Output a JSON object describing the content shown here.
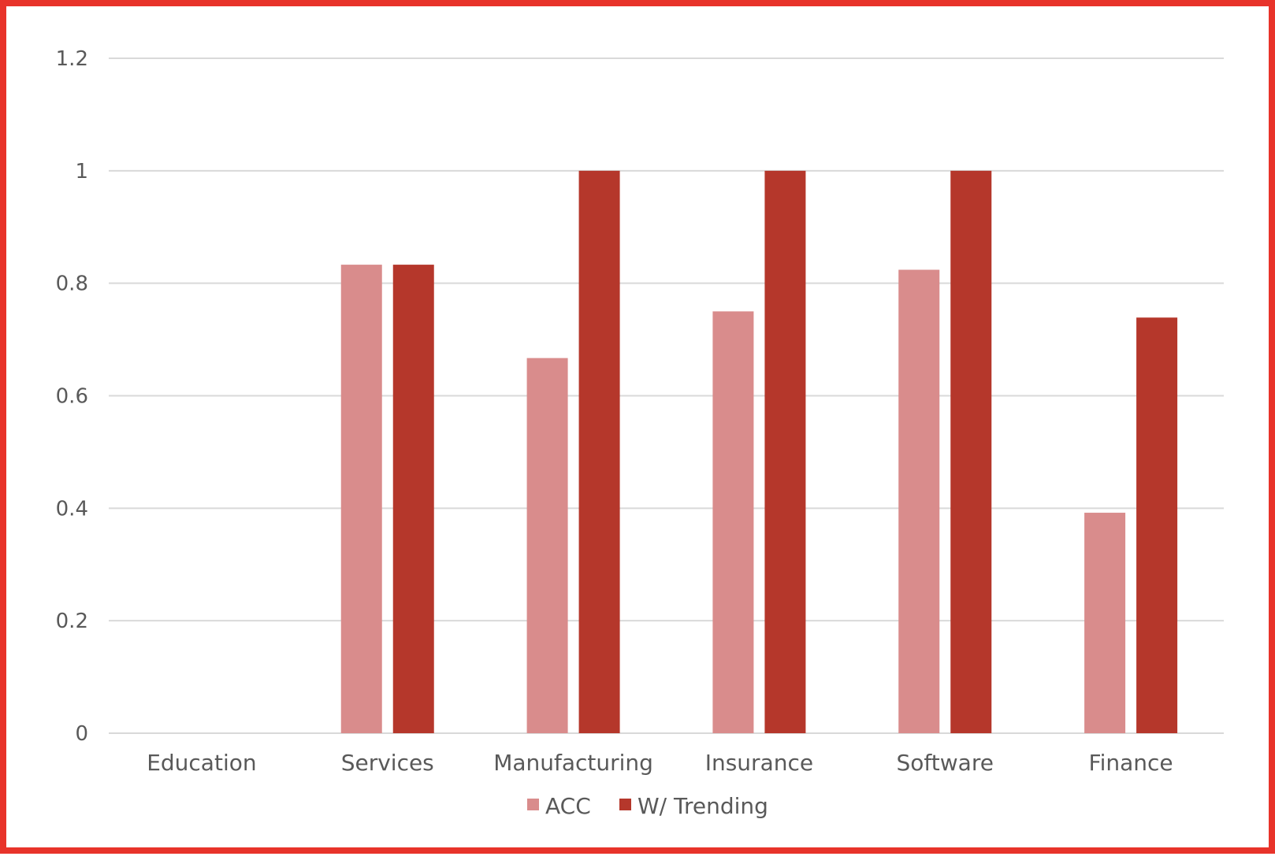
{
  "chart_data": {
    "type": "bar",
    "categories": [
      "Education",
      "Services",
      "Manufacturing",
      "Insurance",
      "Software",
      "Finance"
    ],
    "series": [
      {
        "name": "ACC",
        "color": "#d98c8c",
        "values": [
          0,
          0.833,
          0.667,
          0.75,
          0.824,
          0.392
        ]
      },
      {
        "name": "W/ Trending",
        "color": "#b5372b",
        "values": [
          0,
          0.833,
          1.0,
          1.0,
          1.0,
          0.739
        ]
      }
    ],
    "y_ticks": [
      "0",
      "0.2",
      "0.4",
      "0.6",
      "0.8",
      "1",
      "1.2"
    ],
    "ylim": [
      0,
      1.2
    ],
    "grid": true,
    "legend_position": "bottom",
    "border_color": "#e8332a",
    "gridline_color": "#d9d9d9"
  }
}
